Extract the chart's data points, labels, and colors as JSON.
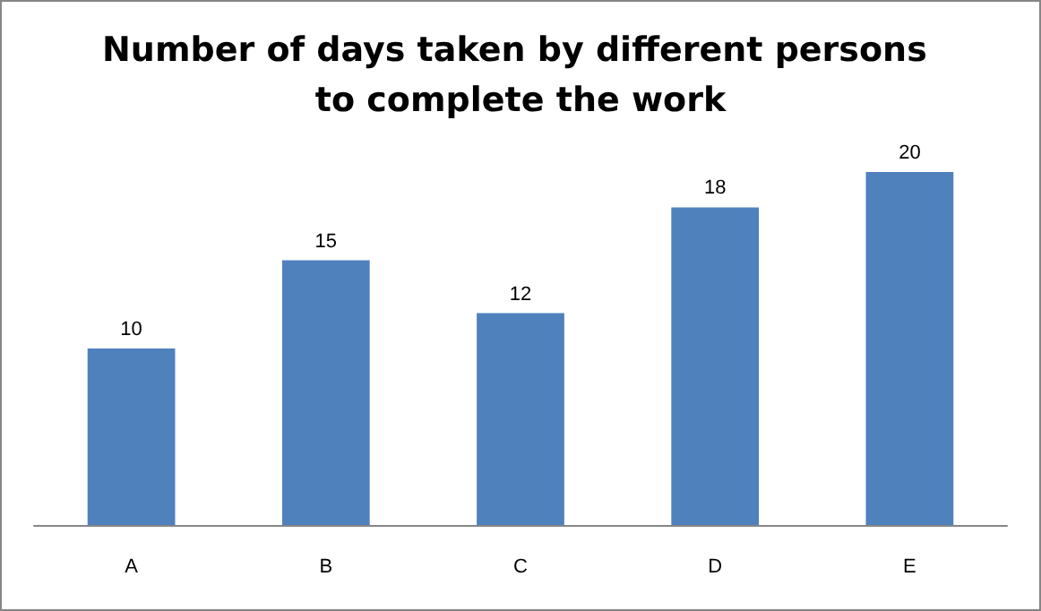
{
  "chart_data": {
    "type": "bar",
    "title": "Number of days taken by different persons to complete the work",
    "categories": [
      "A",
      "B",
      "C",
      "D",
      "E"
    ],
    "values": [
      10,
      15,
      12,
      18,
      20
    ],
    "color": "#4f81bd",
    "data_labels": true
  }
}
